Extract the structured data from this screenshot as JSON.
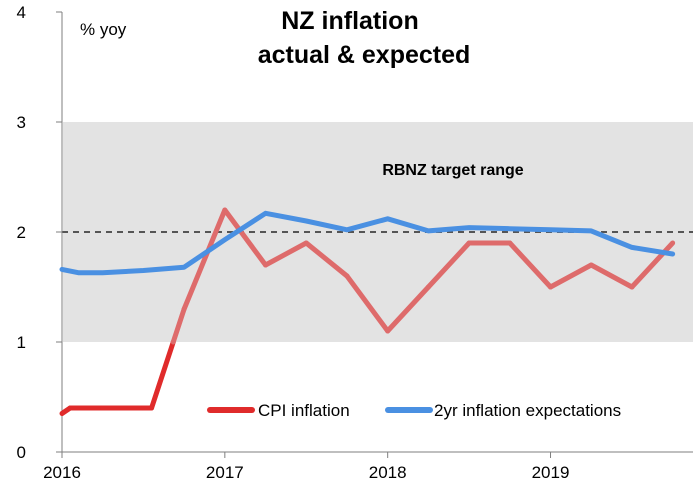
{
  "chart_data": {
    "type": "line",
    "title_lines": [
      "NZ inflation",
      "actual & expected"
    ],
    "unit_label": "% yoy",
    "ylim": [
      0,
      4
    ],
    "yticks": [
      0,
      1,
      2,
      3,
      4
    ],
    "xlim": [
      2016.0,
      2019.875
    ],
    "xticks": [
      2016,
      2017,
      2018,
      2019
    ],
    "grid": false,
    "legend_position": "bottom",
    "band": {
      "label": "RBNZ target range",
      "range": [
        1,
        3
      ],
      "color": "#e3e3e3"
    },
    "reference_line": {
      "y": 2,
      "style": "dashed",
      "color": "#555555"
    },
    "series": [
      {
        "name": "CPI inflation",
        "color": "#e02b2b",
        "faded_color": "#de6b6b",
        "x": [
          2016.0,
          2016.05,
          2016.25,
          2016.5,
          2016.55,
          2016.75,
          2017.0,
          2017.25,
          2017.5,
          2017.75,
          2018.0,
          2018.25,
          2018.5,
          2018.75,
          2019.0,
          2019.25,
          2019.5,
          2019.75
        ],
        "y": [
          0.35,
          0.4,
          0.4,
          0.4,
          0.4,
          1.3,
          2.2,
          1.7,
          1.9,
          1.6,
          1.1,
          1.5,
          1.9,
          1.9,
          1.5,
          1.7,
          1.5,
          1.9
        ]
      },
      {
        "name": "2yr inflation expectations",
        "color": "#4a90e2",
        "x": [
          2016.0,
          2016.1,
          2016.25,
          2016.5,
          2016.75,
          2017.0,
          2017.25,
          2017.5,
          2017.75,
          2018.0,
          2018.25,
          2018.5,
          2018.75,
          2019.0,
          2019.25,
          2019.5,
          2019.75
        ],
        "y": [
          1.66,
          1.63,
          1.63,
          1.65,
          1.68,
          1.93,
          2.17,
          2.1,
          2.02,
          2.12,
          2.01,
          2.04,
          2.03,
          2.02,
          2.01,
          1.86,
          1.8
        ]
      }
    ]
  }
}
